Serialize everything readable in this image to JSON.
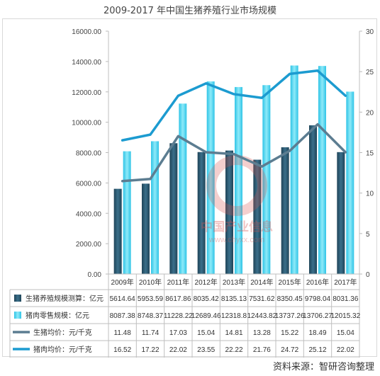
{
  "title": "2009-2017 年中国生猪养殖行业市场规模",
  "source": "资料来源：智研咨询整理",
  "watermark": {
    "cn": "中国产业信息",
    "url": "www.chyxx.com"
  },
  "chart_data": {
    "type": "bar",
    "categories": [
      "2009年",
      "2010年",
      "2011年",
      "2012年",
      "2013年",
      "2014年",
      "2015年",
      "2016年",
      "2017年"
    ],
    "y_left": {
      "ylim": [
        0,
        16000
      ],
      "ticks": [
        "0.00",
        "2000.00",
        "4000.00",
        "6000.00",
        "8000.00",
        "10000.00",
        "12000.00",
        "14000.00",
        "16000.00"
      ]
    },
    "y_right": {
      "ylim": [
        0,
        30
      ],
      "ticks": [
        "0",
        "5",
        "10",
        "15",
        "20",
        "25",
        "30"
      ]
    },
    "grid": false,
    "series": [
      {
        "name": "生猪养殖规模测算：亿元",
        "type": "bar",
        "axis": "left",
        "color": "#2b5770",
        "values": [
          5614.64,
          5953.59,
          8617.86,
          8035.42,
          8135.13,
          7531.62,
          8350.45,
          9798.04,
          8031.36
        ],
        "labels": [
          "5614.64",
          "5953.59",
          "8617.86",
          "8035.42",
          "8135.13",
          "7531.62",
          "8350.45",
          "9798.04",
          "8031.36"
        ]
      },
      {
        "name": "猪肉零售规模：亿元",
        "type": "bar",
        "axis": "left",
        "color": "#4fd8f0",
        "values": [
          8087.38,
          8748.37,
          11228.22,
          12689.46,
          12318.8,
          12443.82,
          13737.26,
          13706.27,
          12015.32
        ],
        "labels": [
          "8087.38",
          "8748.37",
          "11228.22",
          "12689.46",
          "12318.8",
          "12443.82",
          "13737.26",
          "13706.27",
          "12015.32"
        ]
      },
      {
        "name": "生猪均价：元/千克",
        "type": "line",
        "axis": "right",
        "color": "#5c7d91",
        "values": [
          11.48,
          11.74,
          17.03,
          15.04,
          14.81,
          13.28,
          15.22,
          18.49,
          15.04
        ],
        "labels": [
          "11.48",
          "11.74",
          "17.03",
          "15.04",
          "14.81",
          "13.28",
          "15.22",
          "18.49",
          "15.04"
        ]
      },
      {
        "name": "猪肉均价：元/千克",
        "type": "line",
        "axis": "right",
        "color": "#1c9bd0",
        "values": [
          16.52,
          17.22,
          22.02,
          23.55,
          22.22,
          21.76,
          24.72,
          25.12,
          22.02
        ],
        "labels": [
          "16.52",
          "17.22",
          "22.02",
          "23.55",
          "22.22",
          "21.76",
          "24.72",
          "25.12",
          "22.02"
        ]
      }
    ]
  }
}
